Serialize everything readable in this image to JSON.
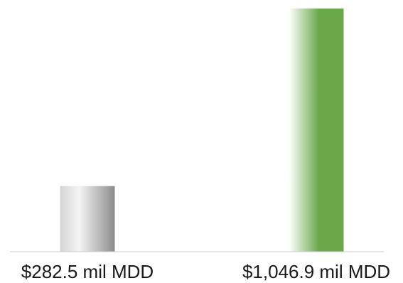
{
  "chart_data": {
    "type": "bar",
    "categories": [
      "$282.5 mil MDD",
      "$1,046.9 mil MDD"
    ],
    "values": [
      282.5,
      1046.9
    ],
    "title": "",
    "xlabel": "",
    "ylabel": "",
    "ylim": [
      0,
      1046.9
    ],
    "grid": false,
    "legend": "none",
    "colors": {
      "bar_1_light": "#f2f2f2",
      "bar_1_dark": "#8c8c8c",
      "bar_2_light": "#ffffff",
      "bar_2_dark": "#6aa84a",
      "baseline": "#cfcfcf"
    }
  }
}
